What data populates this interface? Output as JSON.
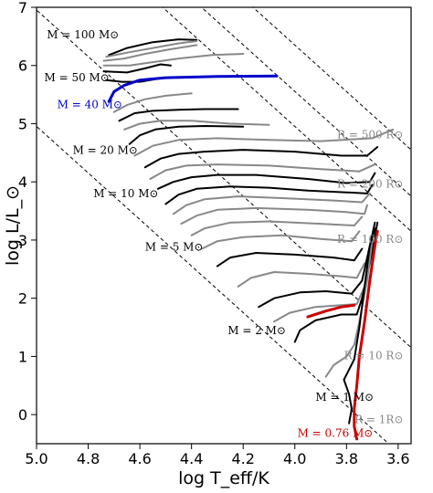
{
  "chart_data": {
    "type": "line",
    "title": "",
    "xlabel": "log T_eff/K",
    "ylabel": "log L/L_⊙",
    "xlim": [
      5.0,
      3.55
    ],
    "ylim": [
      -0.5,
      7.0
    ],
    "x_inverted": true,
    "grid": false,
    "xticks": [
      5.0,
      4.8,
      4.6,
      4.4,
      4.2,
      4.0,
      3.8,
      3.6
    ],
    "xtick_labels": [
      "5.0",
      "4.8",
      "4.6",
      "4.4",
      "4.2",
      "4.0",
      "3.8",
      "3.6"
    ],
    "yticks": [
      0,
      1,
      2,
      3,
      4,
      5,
      6,
      7
    ],
    "ytick_labels": [
      "0",
      "1",
      "2",
      "3",
      "4",
      "5",
      "6",
      "7"
    ],
    "radius_lines": [
      {
        "label": "R = 1R_⊙",
        "text": "R = 1R⊙",
        "log_r": 0.0,
        "label_at": [
          3.58,
          -0.15
        ]
      },
      {
        "label": "R = 10 R_⊙",
        "text": "R = 10 R⊙",
        "log_r": 1.0,
        "label_at": [
          3.58,
          0.95
        ]
      },
      {
        "label": "R = 100 R_⊙",
        "text": "R = 100 R⊙",
        "log_r": 2.0,
        "label_at": [
          3.58,
          2.95
        ]
      },
      {
        "label": "R = 200 R_⊙",
        "text": "R = 200 R⊙",
        "log_r": 2.301,
        "label_at": [
          3.58,
          3.9
        ]
      },
      {
        "label": "R = 500 R_⊙",
        "text": "R = 500 R⊙",
        "log_r": 2.699,
        "label_at": [
          3.58,
          4.75
        ]
      }
    ],
    "mass_labels": [
      {
        "text": "M = 100 M⊙",
        "mass": 100,
        "color": "#000000",
        "at": [
          4.96,
          6.47
        ]
      },
      {
        "text": "M = 50 M⊙",
        "mass": 50,
        "color": "#000000",
        "at": [
          4.97,
          5.73
        ]
      },
      {
        "text": "M = 40 M⊙",
        "mass": 40,
        "color": "#0000cc",
        "at": [
          4.92,
          5.27
        ]
      },
      {
        "text": "M = 20 M⊙",
        "mass": 20,
        "color": "#000000",
        "at": [
          4.86,
          4.48
        ]
      },
      {
        "text": "M = 10 M⊙",
        "mass": 10,
        "color": "#000000",
        "at": [
          4.78,
          3.74
        ]
      },
      {
        "text": "M = 5 M⊙",
        "mass": 5,
        "color": "#000000",
        "at": [
          4.58,
          2.82
        ]
      },
      {
        "text": "M = 2 M⊙",
        "mass": 2,
        "color": "#000000",
        "at": [
          4.26,
          1.38
        ]
      },
      {
        "text": "M = 1 M⊙",
        "mass": 1,
        "color": "#000000",
        "at": [
          3.92,
          0.24
        ]
      },
      {
        "text": "M = 0.76 M⊙",
        "mass": 0.76,
        "color": "#cc0000",
        "at": [
          3.99,
          -0.38
        ]
      }
    ],
    "series": [
      {
        "mass": 100,
        "color": "#000000",
        "points": [
          [
            4.72,
            6.18
          ],
          [
            4.65,
            6.3
          ],
          [
            4.55,
            6.4
          ],
          [
            4.45,
            6.45
          ],
          [
            4.38,
            6.44
          ]
        ]
      },
      {
        "mass": 90,
        "color": "#888888",
        "points": [
          [
            4.73,
            6.15
          ],
          [
            4.65,
            6.22
          ],
          [
            4.55,
            6.3
          ],
          [
            4.45,
            6.38
          ],
          [
            4.38,
            6.42
          ]
        ]
      },
      {
        "mass": 80,
        "color": "#888888",
        "points": [
          [
            4.74,
            6.08
          ],
          [
            4.66,
            6.12
          ],
          [
            4.58,
            6.2
          ],
          [
            4.48,
            6.28
          ],
          [
            4.38,
            6.35
          ]
        ]
      },
      {
        "mass": 70,
        "color": "#888888",
        "points": [
          [
            4.74,
            6.0
          ],
          [
            4.64,
            6.0
          ],
          [
            4.56,
            6.05
          ],
          [
            4.45,
            6.12
          ],
          [
            4.32,
            6.18
          ],
          [
            4.2,
            6.2
          ]
        ]
      },
      {
        "mass": 60,
        "color": "#000000",
        "points": [
          [
            4.74,
            5.9
          ],
          [
            4.65,
            5.88
          ],
          [
            4.58,
            5.95
          ],
          [
            4.52,
            6.02
          ],
          [
            4.48,
            6.0
          ]
        ]
      },
      {
        "mass": 50,
        "color": "#000000",
        "points": [
          [
            4.73,
            5.75
          ],
          [
            4.67,
            5.72
          ],
          [
            4.6,
            5.72
          ],
          [
            4.52,
            5.78
          ],
          [
            4.45,
            5.8
          ],
          [
            4.35,
            5.8
          ]
        ]
      },
      {
        "mass": 40,
        "color": "#0000cc",
        "points": [
          [
            4.72,
            5.38
          ],
          [
            4.7,
            5.55
          ],
          [
            4.66,
            5.66
          ],
          [
            4.6,
            5.75
          ],
          [
            4.5,
            5.79
          ],
          [
            4.3,
            5.81
          ],
          [
            4.07,
            5.82
          ]
        ]
      },
      {
        "mass": 35,
        "color": "#888888",
        "points": [
          [
            4.7,
            5.2
          ],
          [
            4.65,
            5.32
          ],
          [
            4.58,
            5.42
          ],
          [
            4.5,
            5.48
          ],
          [
            4.4,
            5.52
          ]
        ]
      },
      {
        "mass": 30,
        "color": "#000000",
        "points": [
          [
            4.68,
            5.05
          ],
          [
            4.62,
            5.18
          ],
          [
            4.55,
            5.22
          ],
          [
            4.45,
            5.24
          ],
          [
            4.35,
            5.25
          ],
          [
            4.22,
            5.25
          ]
        ]
      },
      {
        "mass": 25,
        "color": "#888888",
        "points": [
          [
            4.66,
            4.9
          ],
          [
            4.6,
            5.0
          ],
          [
            4.52,
            5.05
          ],
          [
            4.4,
            5.05
          ],
          [
            4.25,
            5.0
          ],
          [
            4.1,
            4.98
          ]
        ]
      },
      {
        "mass": 20,
        "color": "#000000",
        "points": [
          [
            4.64,
            4.65
          ],
          [
            4.6,
            4.8
          ],
          [
            4.54,
            4.9
          ],
          [
            4.45,
            4.95
          ],
          [
            4.35,
            4.96
          ],
          [
            4.2,
            4.95
          ]
        ]
      },
      {
        "mass": 17,
        "color": "#888888",
        "points": [
          [
            4.62,
            4.45
          ],
          [
            4.55,
            4.62
          ],
          [
            4.45,
            4.72
          ],
          [
            4.3,
            4.75
          ],
          [
            4.1,
            4.72
          ],
          [
            3.9,
            4.7
          ],
          [
            3.7,
            4.75
          ],
          [
            3.62,
            4.9
          ]
        ]
      },
      {
        "mass": 15,
        "color": "#000000",
        "points": [
          [
            4.58,
            4.25
          ],
          [
            4.52,
            4.4
          ],
          [
            4.45,
            4.48
          ],
          [
            4.35,
            4.52
          ],
          [
            4.2,
            4.55
          ],
          [
            4.0,
            4.52
          ],
          [
            3.82,
            4.45
          ],
          [
            3.72,
            4.45
          ],
          [
            3.68,
            4.6
          ]
        ]
      },
      {
        "mass": 13,
        "color": "#888888",
        "points": [
          [
            4.56,
            4.05
          ],
          [
            4.5,
            4.2
          ],
          [
            4.42,
            4.28
          ],
          [
            4.3,
            4.3
          ],
          [
            4.1,
            4.28
          ],
          [
            3.9,
            4.22
          ],
          [
            3.75,
            4.18
          ],
          [
            3.69,
            4.3
          ]
        ]
      },
      {
        "mass": 12,
        "color": "#000000",
        "points": [
          [
            4.53,
            3.88
          ],
          [
            4.47,
            4.0
          ],
          [
            4.4,
            4.08
          ],
          [
            4.3,
            4.12
          ],
          [
            4.15,
            4.12
          ],
          [
            3.95,
            4.05
          ],
          [
            3.8,
            3.98
          ],
          [
            3.71,
            4.0
          ],
          [
            3.69,
            4.15
          ]
        ]
      },
      {
        "mass": 10,
        "color": "#000000",
        "points": [
          [
            4.5,
            3.62
          ],
          [
            4.45,
            3.78
          ],
          [
            4.38,
            3.88
          ],
          [
            4.25,
            3.92
          ],
          [
            4.1,
            3.9
          ],
          [
            3.95,
            3.85
          ],
          [
            3.8,
            3.82
          ],
          [
            3.72,
            3.8
          ],
          [
            3.7,
            3.95
          ]
        ]
      },
      {
        "mass": 9,
        "color": "#888888",
        "points": [
          [
            4.47,
            3.45
          ],
          [
            4.42,
            3.6
          ],
          [
            4.35,
            3.7
          ],
          [
            4.22,
            3.75
          ],
          [
            4.05,
            3.72
          ],
          [
            3.85,
            3.68
          ],
          [
            3.74,
            3.65
          ],
          [
            3.71,
            3.8
          ]
        ]
      },
      {
        "mass": 8,
        "color": "#888888",
        "points": [
          [
            4.44,
            3.28
          ],
          [
            4.38,
            3.42
          ],
          [
            4.3,
            3.52
          ],
          [
            4.15,
            3.55
          ],
          [
            3.95,
            3.52
          ],
          [
            3.8,
            3.48
          ],
          [
            3.73,
            3.45
          ],
          [
            3.72,
            3.6
          ]
        ]
      },
      {
        "mass": 7,
        "color": "#888888",
        "points": [
          [
            4.4,
            3.08
          ],
          [
            4.35,
            3.2
          ],
          [
            4.25,
            3.3
          ],
          [
            4.1,
            3.32
          ],
          [
            3.9,
            3.28
          ],
          [
            3.77,
            3.25
          ],
          [
            3.74,
            3.4
          ]
        ]
      },
      {
        "mass": 6,
        "color": "#888888",
        "points": [
          [
            4.36,
            2.85
          ],
          [
            4.3,
            2.98
          ],
          [
            4.2,
            3.05
          ],
          [
            4.05,
            3.08
          ],
          [
            3.9,
            3.02
          ],
          [
            3.78,
            2.98
          ],
          [
            3.75,
            3.15
          ]
        ]
      },
      {
        "mass": 5,
        "color": "#000000",
        "points": [
          [
            4.3,
            2.55
          ],
          [
            4.25,
            2.7
          ],
          [
            4.15,
            2.78
          ],
          [
            4.0,
            2.75
          ],
          [
            3.85,
            2.7
          ],
          [
            3.77,
            2.65
          ],
          [
            3.74,
            2.85
          ]
        ]
      },
      {
        "mass": 4,
        "color": "#888888",
        "points": [
          [
            4.22,
            2.2
          ],
          [
            4.17,
            2.35
          ],
          [
            4.08,
            2.45
          ],
          [
            3.95,
            2.42
          ],
          [
            3.83,
            2.38
          ],
          [
            3.76,
            2.35
          ],
          [
            3.73,
            2.6
          ]
        ]
      },
      {
        "mass": 3,
        "color": "#000000",
        "points": [
          [
            4.14,
            1.85
          ],
          [
            4.08,
            2.0
          ],
          [
            3.98,
            2.1
          ],
          [
            3.88,
            2.12
          ],
          [
            3.78,
            2.08
          ],
          [
            3.74,
            2.3
          ],
          [
            3.71,
            2.9
          ],
          [
            3.69,
            3.3
          ]
        ]
      },
      {
        "mass": 2.5,
        "color": "#888888",
        "points": [
          [
            4.08,
            1.6
          ],
          [
            4.02,
            1.75
          ],
          [
            3.92,
            1.85
          ],
          [
            3.82,
            1.88
          ],
          [
            3.76,
            1.9
          ],
          [
            3.73,
            2.2
          ],
          [
            3.7,
            2.9
          ]
        ]
      },
      {
        "mass": 2,
        "color": "#000000",
        "points": [
          [
            4.0,
            1.25
          ],
          [
            3.98,
            1.45
          ],
          [
            3.92,
            1.62
          ],
          [
            3.82,
            1.72
          ],
          [
            3.76,
            1.72
          ],
          [
            3.74,
            2.0
          ],
          [
            3.71,
            2.6
          ],
          [
            3.68,
            3.3
          ]
        ]
      },
      {
        "mass": 1.5,
        "color": "#888888",
        "points": [
          [
            3.88,
            0.65
          ],
          [
            3.85,
            0.85
          ],
          [
            3.8,
            1.0
          ],
          [
            3.77,
            1.2
          ],
          [
            3.75,
            1.6
          ],
          [
            3.72,
            2.3
          ],
          [
            3.7,
            3.0
          ]
        ]
      },
      {
        "mass": 1,
        "color": "#000000",
        "points": [
          [
            3.79,
            -0.15
          ],
          [
            3.78,
            0.1
          ],
          [
            3.79,
            0.35
          ],
          [
            3.81,
            0.6
          ],
          [
            3.77,
            0.95
          ],
          [
            3.75,
            1.5
          ],
          [
            3.73,
            2.2
          ],
          [
            3.71,
            2.9
          ],
          [
            3.69,
            3.2
          ]
        ]
      },
      {
        "mass": 0.76,
        "color": "#cc0000",
        "points": [
          [
            3.76,
            -0.42
          ],
          [
            3.77,
            -0.2
          ],
          [
            3.77,
            0.1
          ],
          [
            3.76,
            0.5
          ],
          [
            3.75,
            1.0
          ],
          [
            3.73,
            1.6
          ],
          [
            3.71,
            2.3
          ],
          [
            3.69,
            2.9
          ],
          [
            3.68,
            3.15
          ]
        ]
      },
      {
        "mass": 0.76,
        "color": "#cc0000",
        "points": [
          [
            3.95,
            1.68
          ],
          [
            3.88,
            1.78
          ],
          [
            3.82,
            1.85
          ],
          [
            3.77,
            1.88
          ]
        ]
      }
    ]
  }
}
